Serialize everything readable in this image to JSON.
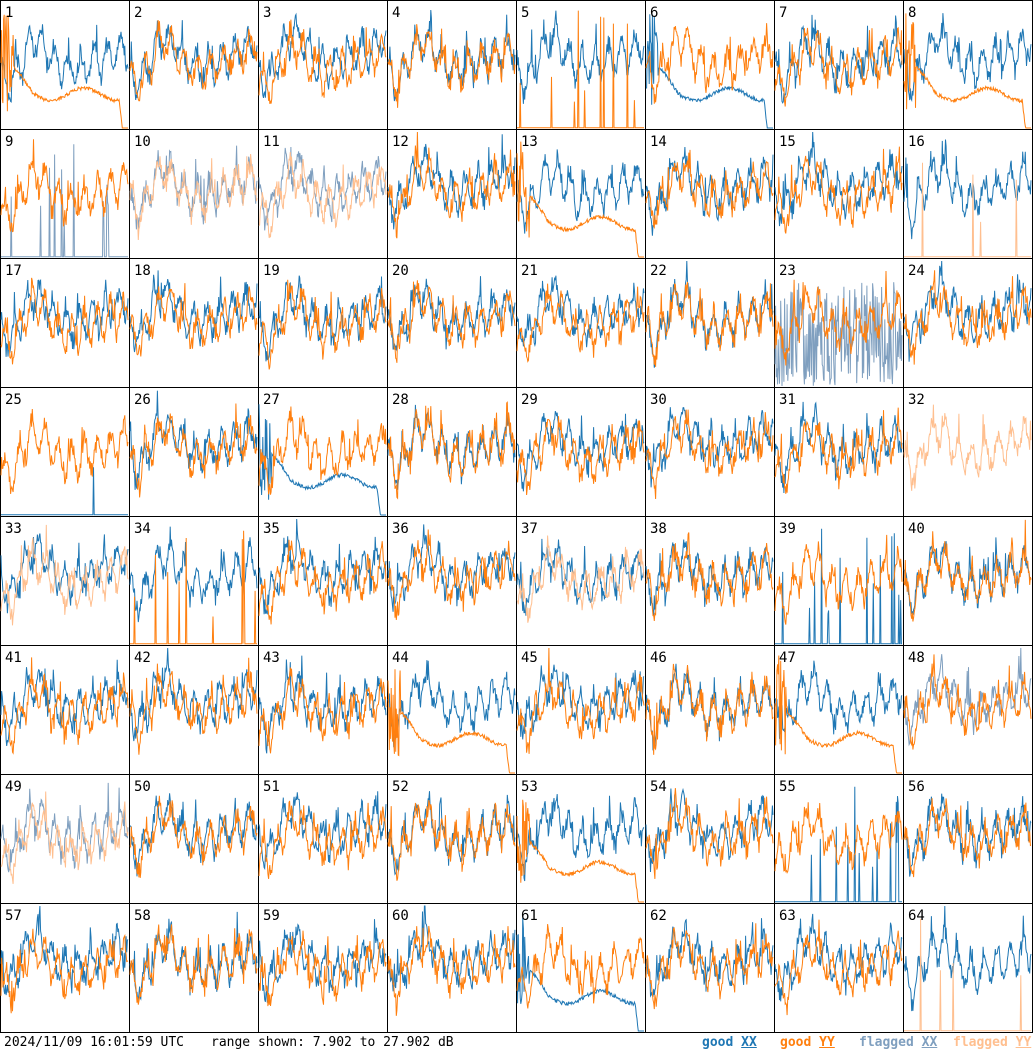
{
  "chart_data": {
    "type": "line",
    "panel_count": 64,
    "columns": 8,
    "rows": 8,
    "panel_labels": [
      "1",
      "2",
      "3",
      "4",
      "5",
      "6",
      "7",
      "8",
      "9",
      "10",
      "11",
      "12",
      "13",
      "14",
      "15",
      "16",
      "17",
      "18",
      "19",
      "20",
      "21",
      "22",
      "23",
      "24",
      "25",
      "26",
      "27",
      "28",
      "29",
      "30",
      "31",
      "32",
      "33",
      "34",
      "35",
      "36",
      "37",
      "38",
      "39",
      "40",
      "41",
      "42",
      "43",
      "44",
      "45",
      "46",
      "47",
      "48",
      "49",
      "50",
      "51",
      "52",
      "53",
      "54",
      "55",
      "56",
      "57",
      "58",
      "59",
      "60",
      "61",
      "62",
      "63",
      "64"
    ],
    "ylim_db": [
      7.902,
      27.902
    ],
    "series": [
      {
        "name": "good XX",
        "color": "#1f77b4"
      },
      {
        "name": "good YY",
        "color": "#ff7f0e"
      },
      {
        "name": "flagged XX",
        "color": "#7f9fbf"
      },
      {
        "name": "flagged YY",
        "color": "#ffbf8f"
      }
    ],
    "panel_states": {
      "1": "yy-decay",
      "5": "yy-spikes",
      "6": "xx-decay",
      "8": "yy-decay",
      "9": "xx-spikes-flagged",
      "10": "both-flagged",
      "11": "both-flagged",
      "13": "yy-decay",
      "16": "yy-spikes-flagged",
      "23": "xx-noisy-flagged",
      "25": "xx-spike",
      "27": "xx-decay",
      "32": "yy-only-flagged",
      "33": "yy-flagged",
      "34": "yy-spikes",
      "37": "yy-flagged",
      "39": "xx-spikes",
      "44": "yy-decay",
      "47": "yy-decay",
      "48": "xx-flagged",
      "49": "both-flagged",
      "53": "yy-decay",
      "55": "xx-spikes",
      "61": "xx-decay",
      "64": "yy-spikes-flagged"
    }
  },
  "footer": {
    "timestamp": "2024/11/09 16:01:59 UTC",
    "range_text": "range shown: 7.902 to 27.902 dB",
    "legend": [
      {
        "label_prefix": "good ",
        "label_pol": "XX",
        "color": "#1f77b4"
      },
      {
        "label_prefix": "good ",
        "label_pol": "YY",
        "color": "#ff7f0e"
      },
      {
        "label_prefix": "flagged ",
        "label_pol": "XX",
        "color": "#7f9fbf"
      },
      {
        "label_prefix": "flagged ",
        "label_pol": "YY",
        "color": "#ffbf8f"
      }
    ]
  }
}
